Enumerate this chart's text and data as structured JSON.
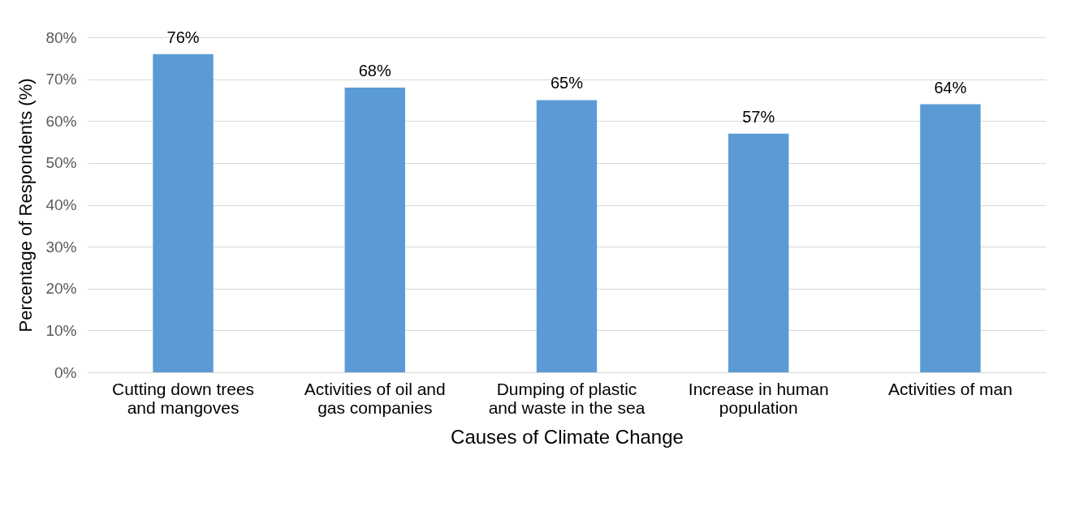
{
  "chart_data": {
    "type": "bar",
    "xlabel": "Causes of Climate Change",
    "ylabel": "Percentage of Respondents (%)",
    "categories": [
      "Cutting down trees and mangoves",
      "Activities of oil and gas companies",
      "Dumping of plastic and waste in the sea",
      "Increase in human population",
      "Activities of man"
    ],
    "values": [
      76,
      68,
      65,
      57,
      64
    ],
    "color": "#5b9bd5",
    "value_labels": [
      "76%",
      "68%",
      "65%",
      "57%",
      "64%"
    ],
    "ylim": [
      0,
      80
    ],
    "yticks": [
      {
        "value": 0,
        "label": "0%"
      },
      {
        "value": 10,
        "label": "10%"
      },
      {
        "value": 20,
        "label": "20%"
      },
      {
        "value": 30,
        "label": "30%"
      },
      {
        "value": 40,
        "label": "40%"
      },
      {
        "value": 50,
        "label": "50%"
      },
      {
        "value": 60,
        "label": "60%"
      },
      {
        "value": 70,
        "label": "70%"
      },
      {
        "value": 80,
        "label": "80%"
      }
    ],
    "grid": "y"
  }
}
